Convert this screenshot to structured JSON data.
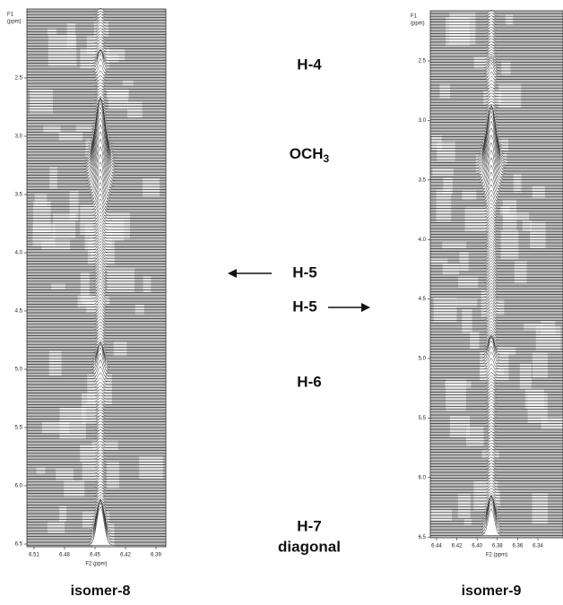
{
  "figure": {
    "left": {
      "f1_label": "F1",
      "f1_unit": "(ppm)",
      "yticks": [
        "2.5",
        "3.0",
        "3.5",
        "4.0",
        "4.5",
        "5.0",
        "5.5",
        "6.0",
        "6.5"
      ],
      "xticks": [
        "6.51",
        "6.48",
        "6.45",
        "6.42",
        "6.39"
      ],
      "x_label": "F2 (ppm)",
      "caption": "isomer-8"
    },
    "right": {
      "f1_label": "F1",
      "f1_unit": "(ppm)",
      "yticks": [
        "2.5",
        "3.0",
        "3.5",
        "4.0",
        "4.5",
        "5.0",
        "5.5",
        "6.0",
        "6.5"
      ],
      "xticks": [
        "6.44",
        "6.42",
        "6.40",
        "6.38",
        "6.36",
        "6.34"
      ],
      "x_label": "F2 (ppm)",
      "caption": "isomer-9"
    },
    "labels": {
      "h4": "H-4",
      "och3": {
        "text": "OCH",
        "subscript": "3"
      },
      "h5_left": "H-5",
      "h5_right": "H-5",
      "h6": "H-6",
      "h7": "H-7",
      "diagonal": "diagonal"
    }
  }
}
